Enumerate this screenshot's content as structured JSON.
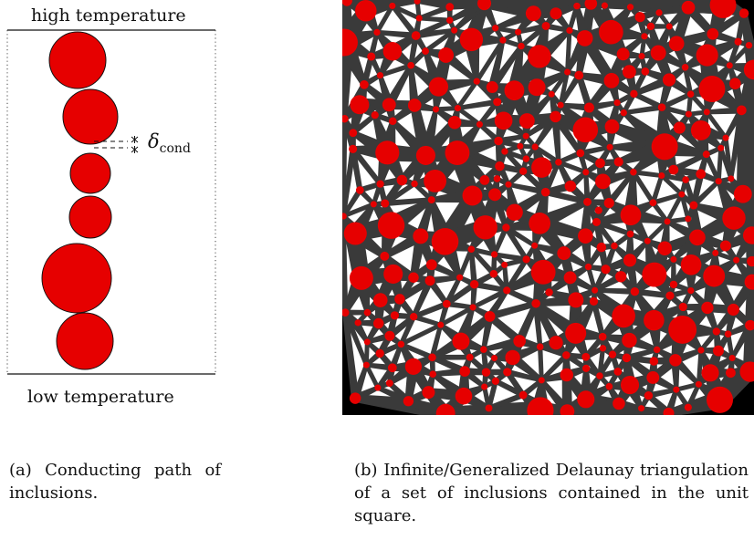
{
  "panel_a": {
    "top_label": "high temperature",
    "bottom_label": "low temperature",
    "delta_symbol": "δ",
    "delta_subscript": "cond",
    "inclusion_color": "#e60000"
  },
  "panel_b": {
    "background": "#000000",
    "triangle_fill": "#ffffff",
    "edge_color": "#3a3a3a",
    "inclusion_color": "#e60000"
  },
  "captions": {
    "a": "(a) Conducting path of inclusions.",
    "b": "(b) Infinite/Generalized Delaunay triangulation of a set of inclusions contained in the unit square."
  }
}
